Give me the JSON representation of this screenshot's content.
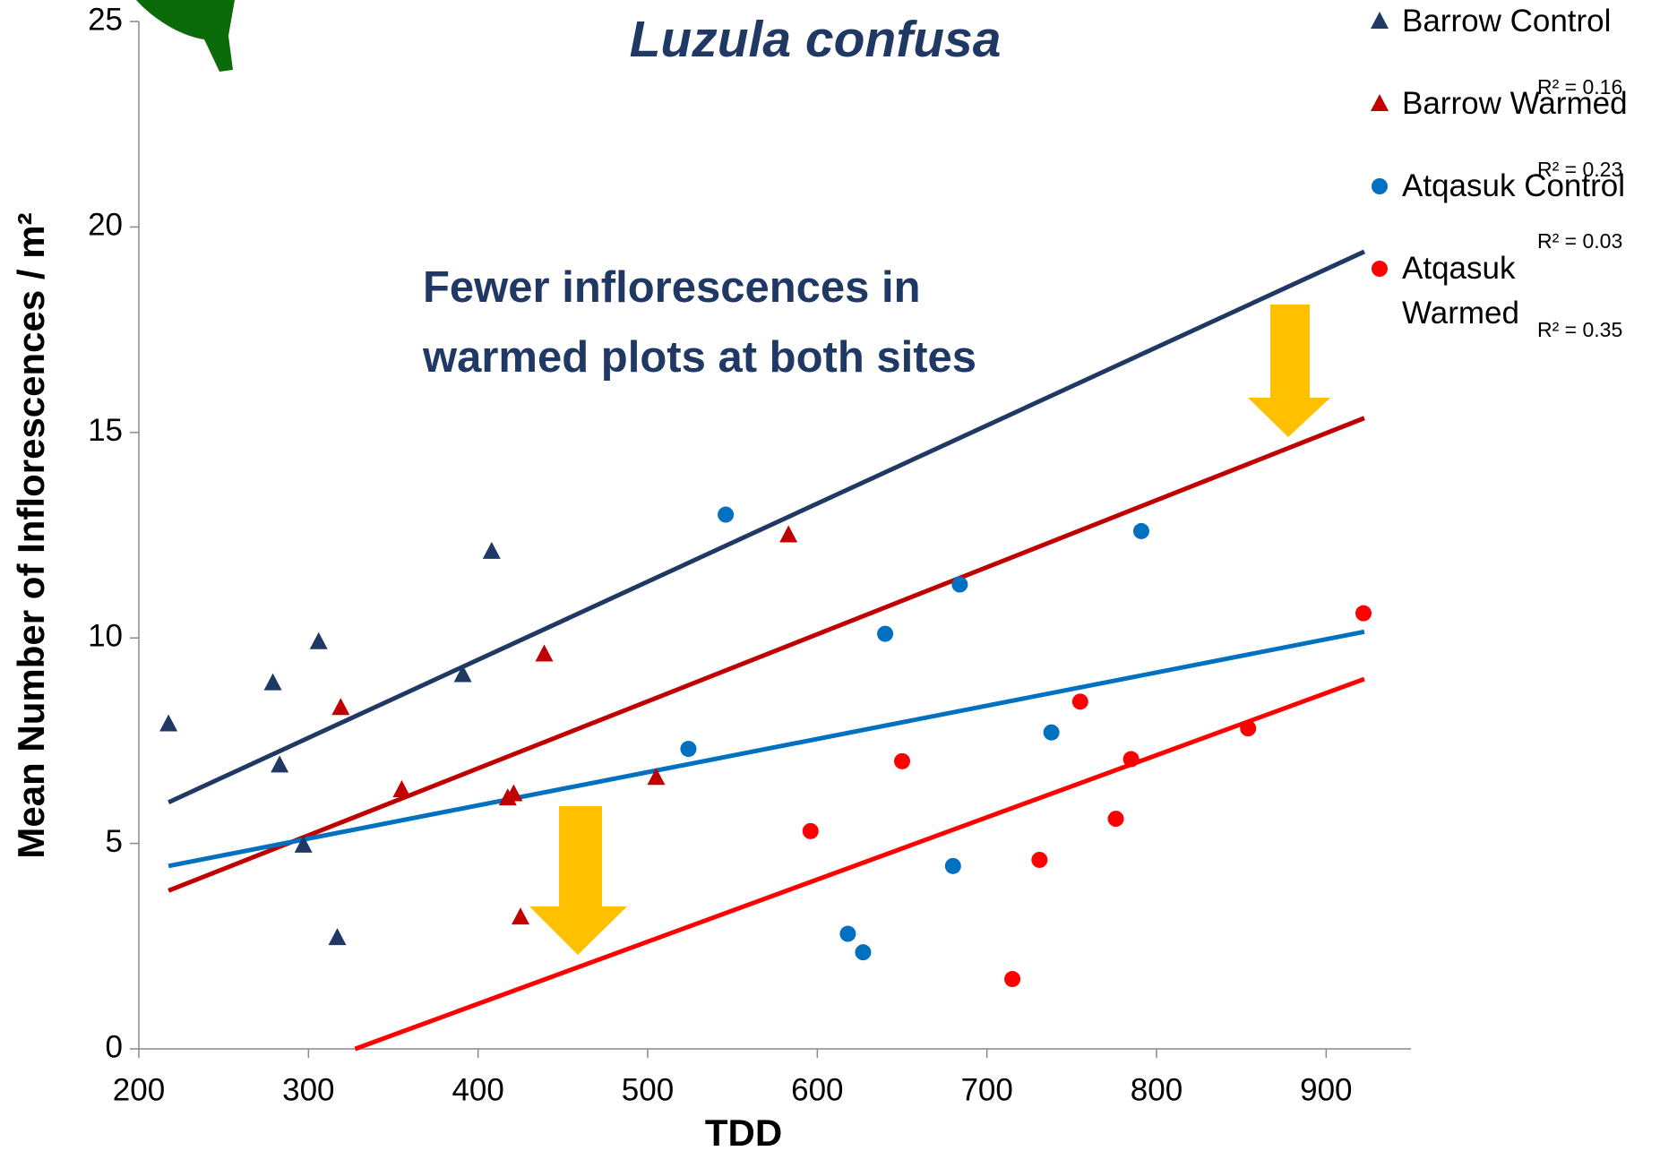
{
  "chart_data": {
    "type": "scatter",
    "title": "Luzula confusa",
    "x_label": "TDD",
    "y_label": "Mean Number of Inflorescences / m²",
    "annotation": "Fewer inflorescences in warmed plots at both sites",
    "xlim": [
      200,
      950
    ],
    "xticks": [
      200,
      300,
      400,
      500,
      600,
      700,
      800,
      900
    ],
    "ylim": [
      0,
      25
    ],
    "yticks": [
      0,
      5,
      10,
      15,
      20,
      25
    ],
    "series": [
      {
        "name": "Barrow Control",
        "color": "#1f3864",
        "marker": "triangle",
        "r2": "R² = 0.16",
        "x": [
          217.5,
          279,
          283,
          306,
          297,
          317,
          391,
          408
        ],
        "values": [
          7.9,
          8.9,
          6.9,
          9.9,
          4.95,
          2.7,
          9.1,
          12.1
        ],
        "trend_x": [
          217.5,
          922.5
        ],
        "trend_y": [
          6.0,
          19.4
        ]
      },
      {
        "name": "Barrow Warmed",
        "color": "#c00000",
        "marker": "triangle",
        "r2": "R² = 0.23",
        "x": [
          319,
          355,
          417.5,
          421,
          425,
          439,
          505,
          583
        ],
        "values": [
          8.3,
          6.3,
          6.1,
          6.2,
          3.2,
          9.6,
          6.6,
          12.5
        ],
        "trend_x": [
          217.5,
          922.5
        ],
        "trend_y": [
          3.85,
          15.35
        ]
      },
      {
        "name": "Atqasuk Control",
        "color": "#0070c0",
        "marker": "circle",
        "r2": "R² = 0.03",
        "x": [
          524,
          546,
          618,
          627,
          640,
          680,
          684,
          738,
          791
        ],
        "values": [
          7.3,
          13.0,
          2.8,
          2.35,
          10.1,
          4.45,
          11.3,
          7.7,
          12.6
        ],
        "trend_x": [
          217.5,
          922.5
        ],
        "trend_y": [
          4.45,
          10.15
        ]
      },
      {
        "name": "Atqasuk Warmed",
        "color": "#ff0000",
        "marker": "circle",
        "r2": "R² = 0.35",
        "x": [
          596,
          650,
          715,
          731,
          755,
          776,
          785,
          854,
          922
        ],
        "values": [
          5.3,
          7.0,
          1.7,
          4.6,
          8.45,
          5.6,
          7.05,
          7.8,
          10.6
        ],
        "trend_x": [
          327.5,
          922.5
        ],
        "trend_y": [
          0,
          9.0
        ]
      }
    ]
  }
}
